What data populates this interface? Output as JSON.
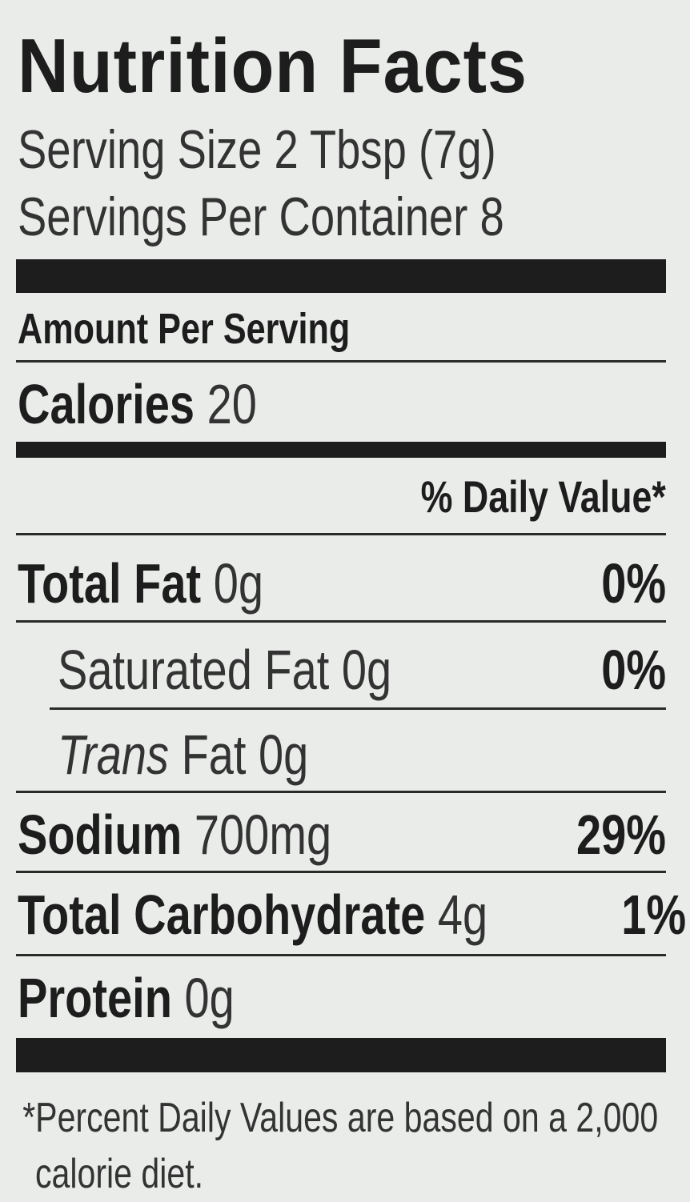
{
  "header": {
    "title": "Nutrition Facts",
    "serving_size": "Serving Size 2 Tbsp (7g)",
    "servings_per_container": "Servings Per Container 8"
  },
  "amount_per_serving": "Amount Per Serving",
  "calories": {
    "label": "Calories",
    "value": "20"
  },
  "daily_value_header": "% Daily Value*",
  "nutrients": [
    {
      "name": "Total Fat",
      "amount": "0g",
      "daily_value": "0%"
    },
    {
      "name": "Saturated Fat",
      "amount": "0g",
      "daily_value": "0%"
    },
    {
      "name_italic": "Trans",
      "name": "Fat",
      "amount": "0g"
    },
    {
      "name": "Sodium",
      "amount": "700mg",
      "daily_value": "29%"
    },
    {
      "name": "Total Carbohydrate",
      "amount": "4g",
      "daily_value": "1%"
    },
    {
      "name": "Protein",
      "amount": "0g"
    }
  ],
  "footnote": "*Percent Daily Values are based on a 2,000 calorie diet."
}
